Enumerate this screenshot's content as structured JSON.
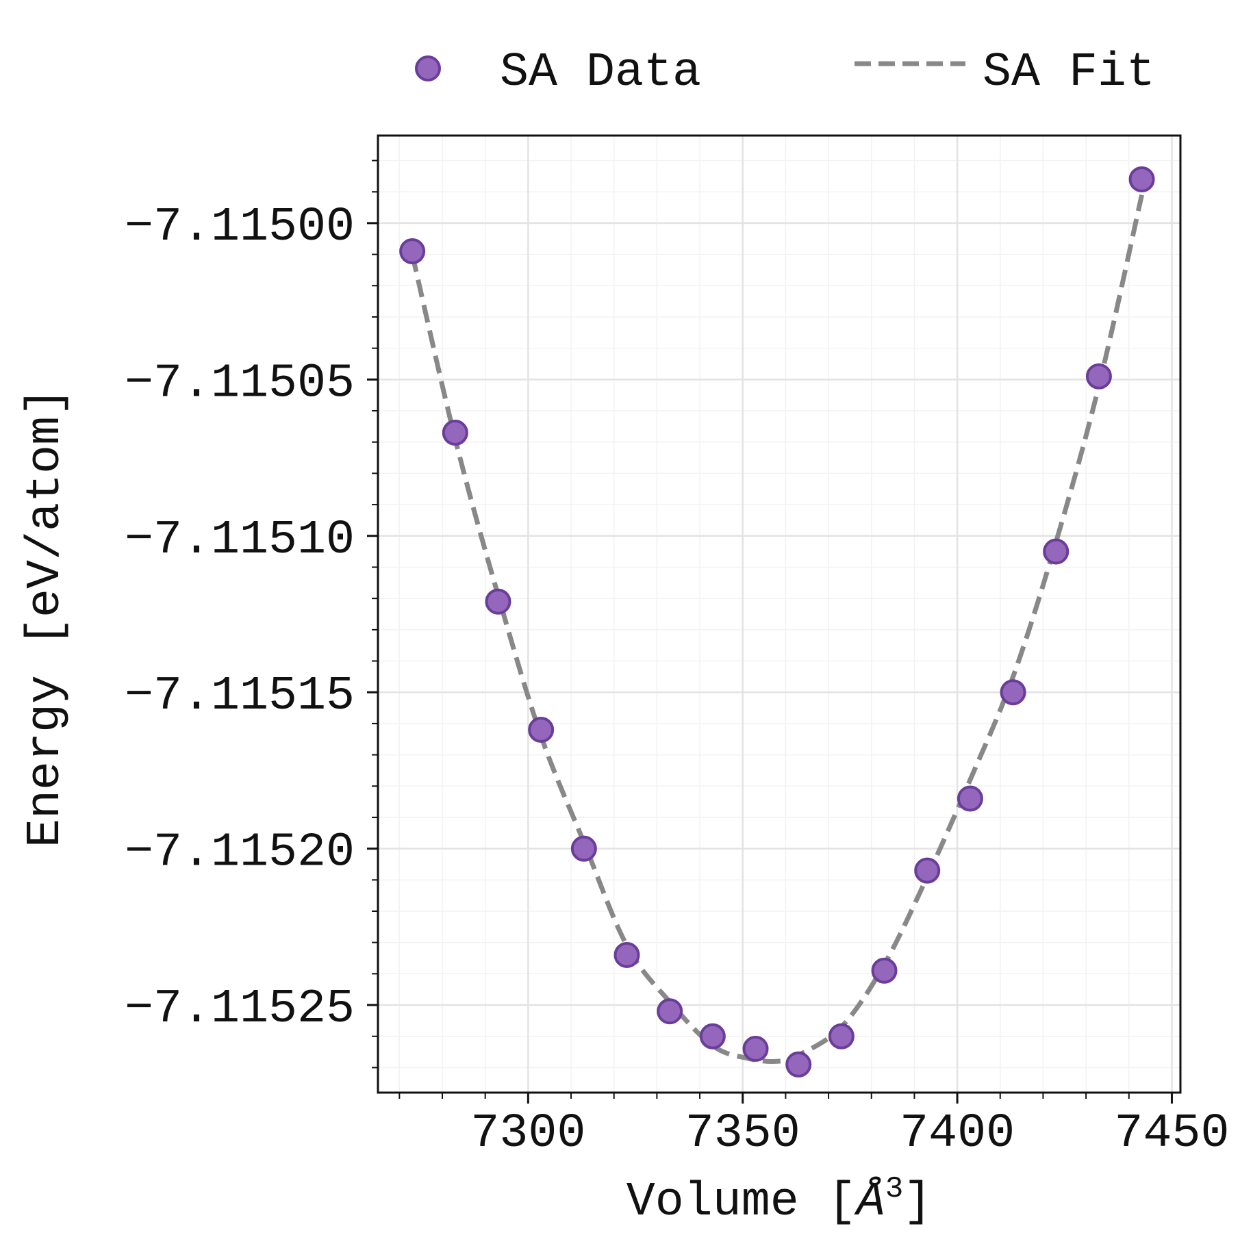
{
  "chart_data": {
    "type": "scatter",
    "title": "",
    "xlabel": "Volume [Å³]",
    "xlabel_parts": {
      "main": "Volume [",
      "symbol": "Å",
      "sup": "3",
      "close": "]"
    },
    "ylabel": "Energy [eV/atom]",
    "xlim": [
      7265,
      7452
    ],
    "ylim": [
      -7.115278,
      -7.114972
    ],
    "x_ticks": [
      7300,
      7350,
      7400,
      7450
    ],
    "x_tick_labels": [
      "7300",
      "7350",
      "7400",
      "7450"
    ],
    "y_ticks": [
      -7.115,
      -7.11505,
      -7.1151,
      -7.11515,
      -7.1152,
      -7.11525
    ],
    "y_tick_labels": [
      "−7.11500",
      "−7.11505",
      "−7.11510",
      "−7.11515",
      "−7.11520",
      "−7.11525"
    ],
    "grid": true,
    "minor_grid": true,
    "legend_position": "top",
    "series": [
      {
        "name": "SA Data",
        "kind": "scatter",
        "color": "#9467bd",
        "edge_color": "#6a3d9a",
        "x": [
          7273,
          7283,
          7293,
          7303,
          7313,
          7323,
          7333,
          7343,
          7353,
          7363,
          7373,
          7383,
          7393,
          7403,
          7413,
          7423,
          7433,
          7443
        ],
        "y": [
          -7.115009,
          -7.115067,
          -7.115121,
          -7.115162,
          -7.1152,
          -7.115234,
          -7.115252,
          -7.11526,
          -7.115264,
          -7.115269,
          -7.11526,
          -7.115239,
          -7.115207,
          -7.115184,
          -7.11515,
          -7.115105,
          -7.115049,
          -7.114986
        ]
      },
      {
        "name": "SA Fit",
        "kind": "line",
        "style": "dashed",
        "color": "#888888",
        "x": [
          7273,
          7283,
          7293,
          7303,
          7313,
          7323,
          7333,
          7343,
          7351,
          7358,
          7363,
          7373,
          7383,
          7393,
          7403,
          7413,
          7423,
          7433,
          7443
        ],
        "y": [
          -7.11501,
          -7.115069,
          -7.115119,
          -7.115164,
          -7.115198,
          -7.115231,
          -7.115249,
          -7.115263,
          -7.115267,
          -7.115268,
          -7.115266,
          -7.115257,
          -7.115237,
          -7.115209,
          -7.115178,
          -7.115145,
          -7.115102,
          -7.115052,
          -7.114991
        ]
      }
    ]
  }
}
